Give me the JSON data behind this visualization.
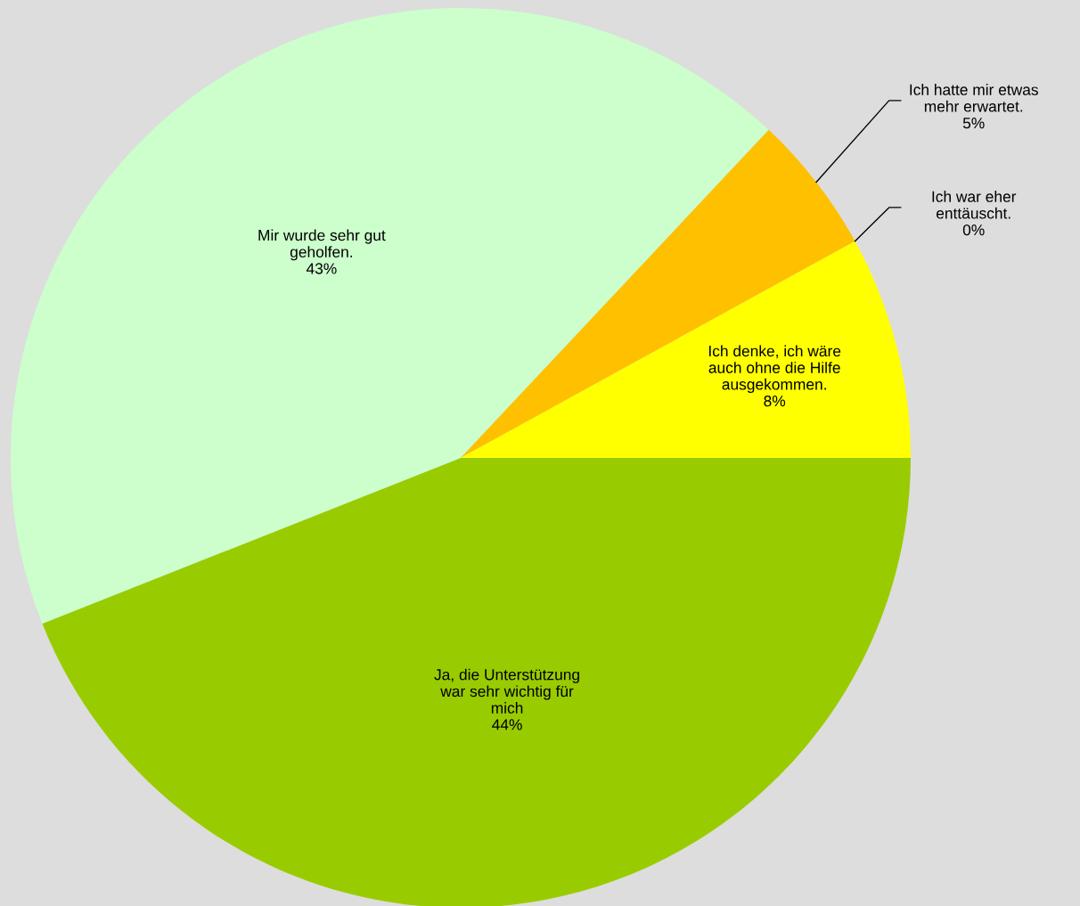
{
  "chart_data": {
    "type": "pie",
    "categories": [
      "Ja, die Unterstützung\nwar sehr wichtig für\nmich",
      "Mir wurde sehr gut\ngeholfen.",
      "Ich hatte mir etwas\nmehr erwartet.",
      "Ich war eher\nenttäuscht.",
      "Ich denke, ich wäre\nauch ohne die Hilfe\nausgekommen."
    ],
    "values": [
      44,
      43,
      5,
      0,
      8
    ],
    "value_labels": [
      "44%",
      "43%",
      "5%",
      "0%",
      "8%"
    ],
    "colors": [
      "#99cc00",
      "#ccffcc",
      "#ffc000",
      "#ffff00",
      "#ffff00"
    ]
  }
}
